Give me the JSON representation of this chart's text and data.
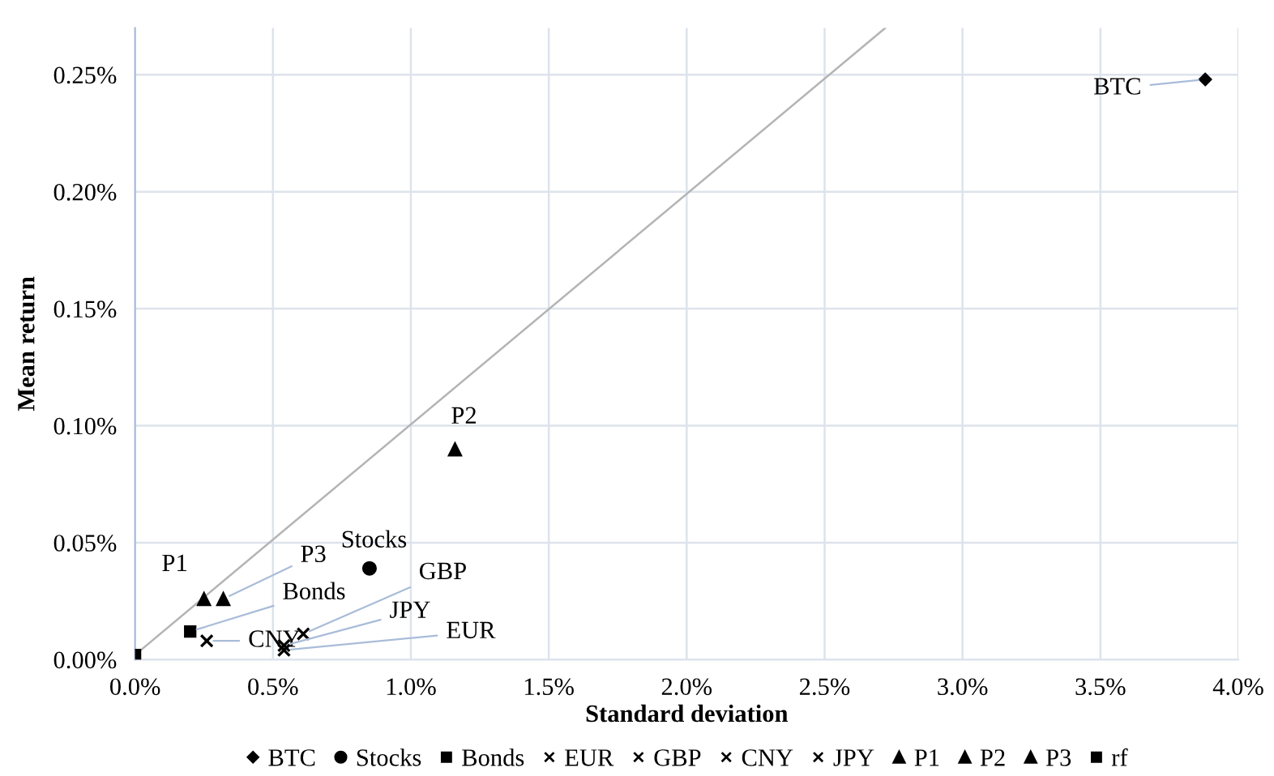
{
  "chart_data": {
    "type": "scatter",
    "xlabel": "Standard deviation",
    "ylabel": "Mean return",
    "xlim": [
      0,
      4.0
    ],
    "ylim": [
      0,
      0.27
    ],
    "xticks": [
      {
        "value": 0,
        "label": "0.0%"
      },
      {
        "value": 0.5,
        "label": "0.5%"
      },
      {
        "value": 1.0,
        "label": "1.0%"
      },
      {
        "value": 1.5,
        "label": "1.5%"
      },
      {
        "value": 2.0,
        "label": "2.0%"
      },
      {
        "value": 2.5,
        "label": "2.5%"
      },
      {
        "value": 3.0,
        "label": "3.0%"
      },
      {
        "value": 3.5,
        "label": "3.5%"
      },
      {
        "value": 4.0,
        "label": "4.0%"
      }
    ],
    "yticks": [
      {
        "value": 0,
        "label": "0.00%"
      },
      {
        "value": 0.05,
        "label": "0.05%"
      },
      {
        "value": 0.1,
        "label": "0.10%"
      },
      {
        "value": 0.15,
        "label": "0.15%"
      },
      {
        "value": 0.2,
        "label": "0.20%"
      },
      {
        "value": 0.25,
        "label": "0.25%"
      }
    ],
    "grid": true,
    "legend": "bottom",
    "series": [
      {
        "name": "BTC",
        "color": "#000000",
        "marker": "diamond",
        "x": [
          3.88
        ],
        "values": [
          0.248
        ]
      },
      {
        "name": "Stocks",
        "color": "#000000",
        "marker": "circle",
        "x": [
          0.85
        ],
        "values": [
          0.039
        ]
      },
      {
        "name": "Bonds",
        "color": "#000000",
        "marker": "square",
        "x": [
          0.2
        ],
        "values": [
          0.012
        ]
      },
      {
        "name": "EUR",
        "color": "#000000",
        "marker": "cross",
        "x": [
          0.54
        ],
        "values": [
          0.004
        ]
      },
      {
        "name": "GBP",
        "color": "#000000",
        "marker": "cross",
        "x": [
          0.61
        ],
        "values": [
          0.011
        ]
      },
      {
        "name": "CNY",
        "color": "#000000",
        "marker": "cross",
        "x": [
          0.26
        ],
        "values": [
          0.008
        ]
      },
      {
        "name": "JPY",
        "color": "#000000",
        "marker": "cross",
        "x": [
          0.54
        ],
        "values": [
          0.006
        ]
      },
      {
        "name": "P1",
        "color": "#000000",
        "marker": "triangle",
        "x": [
          0.25
        ],
        "values": [
          0.026
        ]
      },
      {
        "name": "P2",
        "color": "#000000",
        "marker": "triangle",
        "x": [
          1.16
        ],
        "values": [
          0.09
        ]
      },
      {
        "name": "P3",
        "color": "#000000",
        "marker": "triangle",
        "x": [
          0.32
        ],
        "values": [
          0.026
        ]
      },
      {
        "name": "rf",
        "color": "#000000",
        "marker": "square",
        "x": [
          0
        ],
        "values": [
          0.002
        ]
      },
      {
        "type": "line",
        "color": "#b4b4b4",
        "marker": "none",
        "x": [
          0,
          2.72
        ],
        "values": [
          0.002,
          0.27
        ]
      }
    ],
    "annotations": [
      {
        "text": "BTC",
        "x": 3.88,
        "y": 0.248
      },
      {
        "text": "Stocks",
        "x": 0.85,
        "y": 0.039
      },
      {
        "text": "P2",
        "x": 1.16,
        "y": 0.09
      },
      {
        "text": "P1",
        "x": 0.25,
        "y": 0.026
      },
      {
        "text": "P3",
        "x": 0.32,
        "y": 0.026
      },
      {
        "text": "Bonds",
        "x": 0.2,
        "y": 0.012
      },
      {
        "text": "CNY",
        "x": 0.26,
        "y": 0.008
      },
      {
        "text": "GBP",
        "x": 0.61,
        "y": 0.011
      },
      {
        "text": "JPY",
        "x": 0.54,
        "y": 0.006
      },
      {
        "text": "EUR",
        "x": 0.54,
        "y": 0.004
      }
    ]
  }
}
